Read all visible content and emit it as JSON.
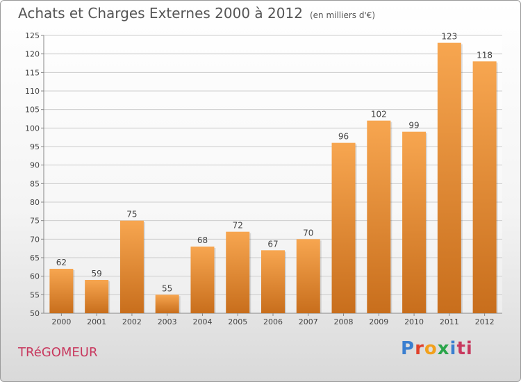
{
  "header": {
    "title": "Achats et Charges Externes 2000 à 2012",
    "unit": "(en milliers d'€)"
  },
  "footer": {
    "commune": "TRéGOMEUR",
    "logo_letters": [
      "P",
      "r",
      "o",
      "x",
      "i",
      "ti"
    ]
  },
  "colors": {
    "bar_top": "#f7a650",
    "bar_bottom": "#c86e1c",
    "grid": "#cccccc",
    "axis_text": "#444444"
  },
  "chart_data": {
    "type": "bar",
    "title": "Achats et Charges Externes 2000 à 2012",
    "subtitle": "(en milliers d'€)",
    "xlabel": "",
    "ylabel": "",
    "ylim": [
      50,
      125
    ],
    "yticks": [
      50,
      55,
      60,
      65,
      70,
      75,
      80,
      85,
      90,
      95,
      100,
      105,
      110,
      115,
      120,
      125
    ],
    "grid": true,
    "categories": [
      "2000",
      "2001",
      "2002",
      "2003",
      "2004",
      "2005",
      "2006",
      "2007",
      "2008",
      "2009",
      "2010",
      "2011",
      "2012"
    ],
    "values": [
      62,
      59,
      75,
      55,
      68,
      72,
      67,
      70,
      96,
      102,
      99,
      123,
      118
    ]
  }
}
